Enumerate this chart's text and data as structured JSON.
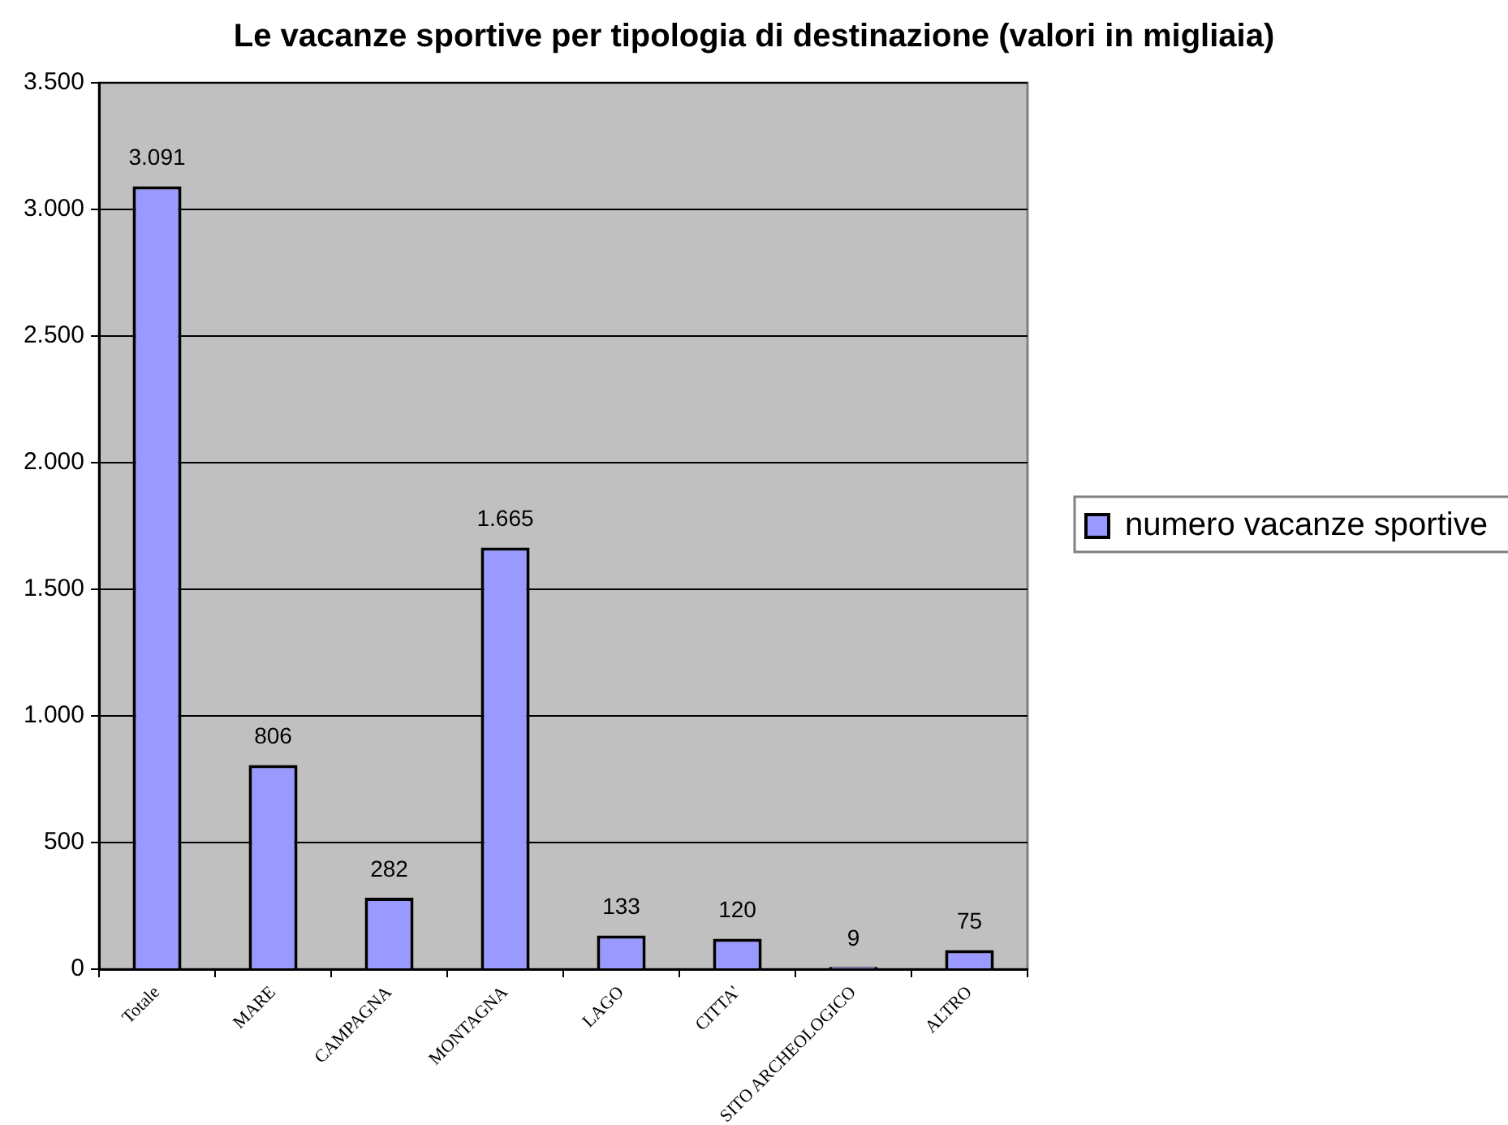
{
  "chart_data": {
    "type": "bar",
    "title": "Le vacanze sportive per tipologia di destinazione (valori in migliaia)",
    "categories": [
      "Totale",
      "MARE",
      "CAMPAGNA",
      "MONTAGNA",
      "LAGO",
      "CITTA'",
      "SITO ARCHEOLOGICO",
      "ALTRO"
    ],
    "series": [
      {
        "name": "numero vacanze sportive",
        "color": "#9999ff",
        "values": [
          3091,
          806,
          282,
          1665,
          133,
          120,
          9,
          75
        ],
        "value_labels": [
          "3.091",
          "806",
          "282",
          "1.665",
          "133",
          "120",
          "9",
          "75"
        ]
      }
    ],
    "ylim": [
      0,
      3500
    ],
    "yticks": [
      0,
      {
        "value": 500,
        "label": "500"
      },
      {
        "value": 1000,
        "label": "1.000"
      },
      {
        "value": 1500,
        "label": "1.500"
      },
      {
        "value": 2000,
        "label": "2.000"
      },
      {
        "value": 2500,
        "label": "2.500"
      },
      {
        "value": 3000,
        "label": "3.000"
      },
      {
        "value": 3500,
        "label": "3.500"
      }
    ],
    "grid": "y",
    "legend": "right"
  }
}
